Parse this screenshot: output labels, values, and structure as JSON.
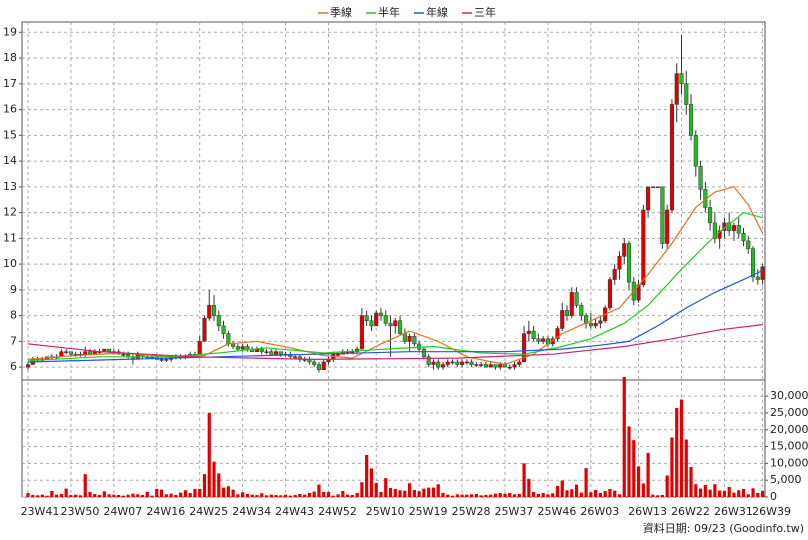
{
  "chart_data": {
    "type": "candlestick",
    "categories": [
      "23W41",
      null,
      null,
      null,
      null,
      null,
      null,
      null,
      null,
      "23W50",
      null,
      null,
      null,
      null,
      null,
      null,
      null,
      null,
      "24W07",
      null,
      null,
      null,
      null,
      null,
      null,
      null,
      null,
      "24W16",
      null,
      null,
      null,
      null,
      null,
      null,
      null,
      null,
      "24W25",
      null,
      null,
      null,
      null,
      null,
      null,
      null,
      null,
      "24W34",
      null,
      null,
      null,
      null,
      null,
      null,
      null,
      null,
      "24W43",
      null,
      null,
      null,
      null,
      null,
      null,
      null,
      null,
      "24W52",
      null,
      null,
      null,
      null,
      null,
      null,
      null,
      null,
      null,
      "25W10",
      null,
      null,
      null,
      null,
      null,
      null,
      null,
      null,
      "25W19",
      null,
      null,
      null,
      null,
      null,
      null,
      null,
      null,
      "25W28",
      null,
      null,
      null,
      null,
      null,
      null,
      null,
      null,
      "25W37",
      null,
      null,
      null,
      null,
      null,
      null,
      null,
      null,
      "25W46",
      null,
      null,
      null,
      null,
      null,
      null,
      null,
      null,
      "26W03",
      null,
      null,
      null,
      null,
      null,
      null,
      null,
      null,
      null,
      "26W13",
      null,
      null,
      null,
      null,
      null,
      null,
      null,
      null,
      "26W22",
      null,
      null,
      null,
      null,
      null,
      null,
      null,
      null,
      "26W31",
      null,
      null,
      null,
      null,
      null,
      null,
      null,
      "26W39"
    ],
    "ohlc": [
      [
        6.0,
        6.2,
        5.9,
        6.1
      ],
      [
        6.1,
        6.4,
        6.1,
        6.3
      ],
      [
        6.3,
        6.4,
        6.2,
        6.3
      ],
      [
        6.3,
        6.4,
        6.2,
        6.3
      ],
      [
        6.3,
        6.4,
        6.3,
        6.4
      ],
      [
        6.4,
        6.5,
        6.3,
        6.4
      ],
      [
        6.4,
        6.5,
        6.3,
        6.4
      ],
      [
        6.4,
        6.7,
        6.4,
        6.6
      ],
      [
        6.6,
        6.7,
        6.5,
        6.6
      ],
      [
        6.6,
        6.6,
        6.4,
        6.5
      ],
      [
        6.5,
        6.6,
        6.4,
        6.5
      ],
      [
        6.5,
        6.6,
        6.4,
        6.5
      ],
      [
        6.5,
        6.8,
        6.4,
        6.6
      ],
      [
        6.6,
        6.7,
        6.5,
        6.5
      ],
      [
        6.5,
        6.7,
        6.5,
        6.6
      ],
      [
        6.6,
        6.7,
        6.5,
        6.6
      ],
      [
        6.6,
        6.7,
        6.6,
        6.7
      ],
      [
        6.7,
        6.7,
        6.6,
        6.6
      ],
      [
        6.6,
        6.7,
        6.5,
        6.6
      ],
      [
        6.6,
        6.7,
        6.5,
        6.5
      ],
      [
        6.5,
        6.6,
        6.4,
        6.5
      ],
      [
        6.5,
        6.6,
        6.3,
        6.4
      ],
      [
        6.4,
        6.5,
        6.1,
        6.3
      ],
      [
        6.3,
        6.6,
        6.3,
        6.5
      ],
      [
        6.5,
        6.5,
        6.3,
        6.4
      ],
      [
        6.4,
        6.5,
        6.3,
        6.4
      ],
      [
        6.4,
        6.5,
        6.3,
        6.4
      ],
      [
        6.4,
        6.5,
        6.3,
        6.3
      ],
      [
        6.3,
        6.4,
        6.2,
        6.3
      ],
      [
        6.3,
        6.4,
        6.2,
        6.3
      ],
      [
        6.3,
        6.4,
        6.2,
        6.4
      ],
      [
        6.4,
        6.5,
        6.3,
        6.4
      ],
      [
        6.4,
        6.5,
        6.3,
        6.4
      ],
      [
        6.4,
        6.5,
        6.3,
        6.4
      ],
      [
        6.4,
        6.6,
        6.4,
        6.5
      ],
      [
        6.5,
        6.6,
        6.4,
        6.5
      ],
      [
        6.5,
        7.2,
        6.5,
        7.0
      ],
      [
        7.0,
        8.0,
        7.0,
        7.9
      ],
      [
        7.9,
        9.0,
        7.8,
        8.4
      ],
      [
        8.4,
        8.8,
        7.8,
        8.0
      ],
      [
        8.0,
        8.2,
        7.4,
        7.6
      ],
      [
        7.6,
        7.8,
        7.1,
        7.3
      ],
      [
        7.3,
        7.4,
        6.8,
        6.9
      ],
      [
        6.9,
        7.0,
        6.7,
        6.8
      ],
      [
        6.8,
        6.9,
        6.6,
        6.7
      ],
      [
        6.7,
        6.9,
        6.6,
        6.8
      ],
      [
        6.8,
        6.9,
        6.6,
        6.7
      ],
      [
        6.7,
        6.8,
        6.6,
        6.6
      ],
      [
        6.6,
        6.8,
        6.6,
        6.7
      ],
      [
        6.7,
        6.8,
        6.5,
        6.6
      ],
      [
        6.6,
        6.7,
        6.5,
        6.6
      ],
      [
        6.6,
        6.7,
        6.5,
        6.5
      ],
      [
        6.5,
        6.7,
        6.5,
        6.6
      ],
      [
        6.6,
        6.6,
        6.4,
        6.5
      ],
      [
        6.5,
        6.6,
        6.4,
        6.5
      ],
      [
        6.5,
        6.6,
        6.3,
        6.4
      ],
      [
        6.4,
        6.5,
        6.3,
        6.4
      ],
      [
        6.4,
        6.5,
        6.2,
        6.3
      ],
      [
        6.3,
        6.4,
        6.2,
        6.3
      ],
      [
        6.3,
        6.4,
        6.1,
        6.2
      ],
      [
        6.2,
        6.3,
        6.0,
        6.1
      ],
      [
        6.1,
        6.2,
        5.8,
        5.9
      ],
      [
        5.9,
        6.3,
        5.9,
        6.2
      ],
      [
        6.2,
        6.4,
        6.1,
        6.3
      ],
      [
        6.3,
        6.6,
        6.2,
        6.5
      ],
      [
        6.5,
        6.6,
        6.4,
        6.5
      ],
      [
        6.5,
        6.7,
        6.5,
        6.6
      ],
      [
        6.6,
        6.7,
        6.5,
        6.6
      ],
      [
        6.6,
        6.7,
        6.5,
        6.6
      ],
      [
        6.6,
        6.8,
        6.5,
        6.7
      ],
      [
        6.7,
        8.3,
        6.7,
        8.0
      ],
      [
        8.0,
        8.2,
        7.6,
        7.8
      ],
      [
        7.8,
        8.0,
        7.4,
        7.6
      ],
      [
        7.6,
        8.2,
        7.6,
        8.1
      ],
      [
        8.1,
        8.3,
        7.8,
        8.0
      ],
      [
        8.0,
        8.2,
        7.6,
        7.7
      ],
      [
        7.7,
        8.0,
        6.4,
        7.6
      ],
      [
        7.6,
        7.9,
        7.3,
        7.8
      ],
      [
        7.8,
        8.0,
        7.2,
        7.3
      ],
      [
        7.3,
        7.5,
        6.9,
        7.0
      ],
      [
        7.0,
        7.3,
        6.6,
        7.2
      ],
      [
        7.2,
        7.3,
        6.8,
        6.9
      ],
      [
        6.9,
        7.0,
        6.6,
        6.7
      ],
      [
        6.7,
        6.8,
        6.3,
        6.4
      ],
      [
        6.4,
        6.5,
        6.0,
        6.1
      ],
      [
        6.1,
        6.3,
        5.9,
        6.2
      ],
      [
        6.2,
        6.3,
        5.9,
        6.0
      ],
      [
        6.0,
        6.2,
        5.9,
        6.1
      ],
      [
        6.1,
        6.3,
        6.0,
        6.2
      ],
      [
        6.2,
        6.3,
        6.1,
        6.2
      ],
      [
        6.2,
        6.3,
        6.0,
        6.1
      ],
      [
        6.1,
        6.3,
        6.0,
        6.2
      ],
      [
        6.2,
        6.3,
        6.1,
        6.2
      ],
      [
        6.2,
        6.3,
        6.0,
        6.1
      ],
      [
        6.1,
        6.2,
        6.0,
        6.1
      ],
      [
        6.1,
        6.2,
        6.0,
        6.1
      ],
      [
        6.1,
        6.2,
        6.0,
        6.0
      ],
      [
        6.0,
        6.2,
        6.0,
        6.1
      ],
      [
        6.1,
        6.1,
        5.9,
        6.0
      ],
      [
        6.0,
        6.2,
        5.9,
        6.1
      ],
      [
        6.1,
        6.2,
        6.0,
        6.0
      ],
      [
        6.0,
        6.1,
        5.9,
        6.0
      ],
      [
        6.0,
        6.2,
        5.9,
        6.1
      ],
      [
        6.1,
        6.3,
        6.0,
        6.2
      ],
      [
        6.2,
        7.6,
        6.2,
        7.3
      ],
      [
        7.3,
        7.8,
        7.0,
        7.4
      ],
      [
        7.4,
        7.6,
        7.0,
        7.1
      ],
      [
        7.1,
        7.3,
        6.9,
        7.0
      ],
      [
        7.0,
        7.2,
        6.9,
        7.1
      ],
      [
        7.1,
        7.2,
        6.8,
        6.9
      ],
      [
        6.9,
        7.2,
        6.8,
        7.1
      ],
      [
        7.1,
        7.6,
        7.0,
        7.5
      ],
      [
        7.5,
        8.5,
        7.4,
        8.2
      ],
      [
        8.2,
        8.4,
        7.8,
        8.0
      ],
      [
        8.0,
        9.1,
        7.9,
        8.9
      ],
      [
        8.9,
        9.1,
        8.3,
        8.4
      ],
      [
        8.4,
        8.5,
        7.8,
        8.0
      ],
      [
        8.0,
        8.1,
        7.5,
        7.7
      ],
      [
        7.7,
        8.1,
        7.5,
        7.6
      ],
      [
        7.6,
        7.9,
        7.5,
        7.7
      ],
      [
        7.7,
        8.0,
        7.5,
        7.8
      ],
      [
        7.8,
        8.4,
        7.7,
        8.3
      ],
      [
        8.3,
        9.5,
        8.2,
        9.4
      ],
      [
        9.4,
        10.0,
        9.2,
        9.8
      ],
      [
        9.8,
        10.5,
        9.4,
        10.3
      ],
      [
        10.3,
        11.0,
        10.0,
        10.8
      ],
      [
        10.8,
        10.9,
        9.0,
        9.3
      ],
      [
        9.3,
        9.5,
        8.4,
        8.6
      ],
      [
        8.6,
        9.4,
        8.5,
        9.2
      ],
      [
        9.2,
        12.3,
        9.1,
        12.1
      ],
      [
        12.1,
        13.0,
        11.8,
        13.0
      ],
      [
        13.0,
        13.0,
        13.0,
        13.0
      ],
      [
        13.0,
        13.0,
        13.0,
        13.0
      ],
      [
        13.0,
        13.0,
        10.6,
        10.8
      ],
      [
        10.8,
        12.3,
        10.6,
        12.1
      ],
      [
        12.1,
        16.4,
        12.0,
        16.2
      ],
      [
        16.2,
        17.8,
        15.5,
        17.4
      ],
      [
        17.4,
        18.9,
        16.6,
        17.0
      ],
      [
        17.0,
        17.5,
        15.8,
        16.2
      ],
      [
        16.2,
        16.6,
        14.8,
        15.0
      ],
      [
        15.0,
        15.2,
        13.4,
        13.8
      ],
      [
        13.8,
        14.0,
        12.5,
        12.9
      ],
      [
        12.9,
        13.2,
        12.0,
        12.2
      ],
      [
        12.2,
        12.5,
        11.3,
        11.6
      ],
      [
        11.6,
        12.0,
        10.8,
        11.0
      ],
      [
        11.0,
        11.5,
        10.6,
        11.3
      ],
      [
        11.3,
        11.8,
        11.0,
        11.6
      ],
      [
        11.6,
        12.0,
        11.1,
        11.3
      ],
      [
        11.3,
        11.6,
        10.9,
        11.5
      ],
      [
        11.5,
        11.8,
        11.0,
        11.2
      ],
      [
        11.2,
        11.4,
        10.7,
        10.9
      ],
      [
        10.9,
        11.1,
        10.4,
        10.6
      ],
      [
        10.6,
        10.7,
        9.3,
        9.5
      ],
      [
        9.5,
        9.8,
        9.2,
        9.4
      ],
      [
        9.4,
        10.0,
        9.2,
        9.9
      ]
    ],
    "up_color": "#e00000",
    "down_color": "#22bb22",
    "ylim": [
      5.5,
      19.4
    ],
    "yticks": [
      6,
      7,
      8,
      9,
      10,
      11,
      12,
      13,
      14,
      15,
      16,
      17,
      18,
      19
    ],
    "grid": true,
    "series": [
      {
        "name": "季線",
        "color": "#e07020",
        "x": [
          0,
          10,
          20,
          30,
          37,
          42,
          48,
          55,
          62,
          68,
          74,
          80,
          86,
          92,
          100,
          106,
          112,
          118,
          124,
          130,
          135,
          140,
          144,
          148,
          151,
          154
        ],
        "values": [
          6.3,
          6.45,
          6.55,
          6.4,
          6.45,
          6.9,
          7.0,
          6.75,
          6.45,
          6.35,
          6.9,
          7.4,
          7.0,
          6.4,
          6.1,
          6.5,
          7.3,
          7.8,
          8.3,
          9.6,
          10.8,
          12.2,
          12.8,
          13.0,
          12.3,
          11.2
        ]
      },
      {
        "name": "半年",
        "color": "#22cc22",
        "x": [
          0,
          15,
          30,
          40,
          50,
          62,
          75,
          85,
          95,
          104,
          112,
          118,
          125,
          130,
          137,
          144,
          150,
          154
        ],
        "values": [
          6.25,
          6.4,
          6.4,
          6.55,
          6.75,
          6.55,
          6.7,
          6.8,
          6.55,
          6.5,
          6.8,
          7.1,
          7.7,
          8.4,
          9.8,
          11.1,
          12.0,
          11.8
        ]
      },
      {
        "name": "年線",
        "color": "#2255dd",
        "x": [
          0,
          20,
          40,
          60,
          80,
          100,
          112,
          120,
          126,
          132,
          138,
          144,
          150,
          154
        ],
        "values": [
          6.2,
          6.3,
          6.4,
          6.5,
          6.6,
          6.6,
          6.7,
          6.85,
          7.0,
          7.6,
          8.3,
          8.9,
          9.4,
          9.75
        ]
      },
      {
        "name": "三年",
        "color": "#cc2277",
        "x": [
          0,
          15,
          35,
          60,
          90,
          110,
          125,
          135,
          145,
          154
        ],
        "values": [
          6.9,
          6.6,
          6.4,
          6.3,
          6.35,
          6.5,
          6.8,
          7.1,
          7.45,
          7.65
        ]
      }
    ],
    "volume": {
      "color": "#e00000",
      "values": [
        1200,
        600,
        500,
        700,
        400,
        1800,
        700,
        900,
        2500,
        600,
        700,
        500,
        6800,
        1500,
        900,
        600,
        1700,
        800,
        700,
        600,
        400,
        700,
        1000,
        800,
        600,
        1500,
        400,
        2400,
        2200,
        800,
        1000,
        600,
        1300,
        2000,
        1200,
        2400,
        2400,
        6800,
        25000,
        10500,
        7000,
        2800,
        3200,
        2200,
        800,
        1400,
        900,
        700,
        600,
        1100,
        500,
        700,
        600,
        500,
        700,
        400,
        600,
        900,
        700,
        1200,
        1600,
        3700,
        1500,
        1500,
        400,
        800,
        1800,
        700,
        600,
        1200,
        4400,
        12500,
        8500,
        4200,
        1500,
        5600,
        2700,
        2400,
        2000,
        1900,
        4100,
        2100,
        1700,
        2500,
        2800,
        2800,
        3800,
        1200,
        700,
        400,
        800,
        700,
        700,
        800,
        900,
        500,
        600,
        700,
        1000,
        1200,
        1000,
        1200,
        800,
        900,
        10000,
        5400,
        1500,
        900,
        1200,
        800,
        1100,
        3300,
        4900,
        2000,
        2300,
        3700,
        1300,
        8600,
        1400,
        2100,
        1200,
        1800,
        2400,
        1900,
        800,
        35700,
        21000,
        16900,
        9100,
        4000,
        13100,
        700,
        500,
        600,
        6400,
        17700,
        26500,
        29000,
        17100,
        8900,
        3800,
        2500,
        3600,
        2200,
        3800,
        1900,
        1800,
        3000,
        1300,
        2000,
        2400,
        800,
        2600,
        1200,
        1800
      ],
      "y2lim": [
        0,
        34800
      ],
      "y2ticks": [
        0,
        {
          "value": 5000,
          "label": "5,000"
        },
        {
          "value": 10000,
          "label": "10,000"
        },
        {
          "value": 15000,
          "label": "15,000"
        },
        {
          "value": 20000,
          "label": "20,000"
        },
        {
          "value": 25000,
          "label": "25,000"
        },
        {
          "value": 30000,
          "label": "30,000"
        }
      ]
    },
    "footer": "資料日期: 09/23 (Goodinfo.tw)"
  }
}
